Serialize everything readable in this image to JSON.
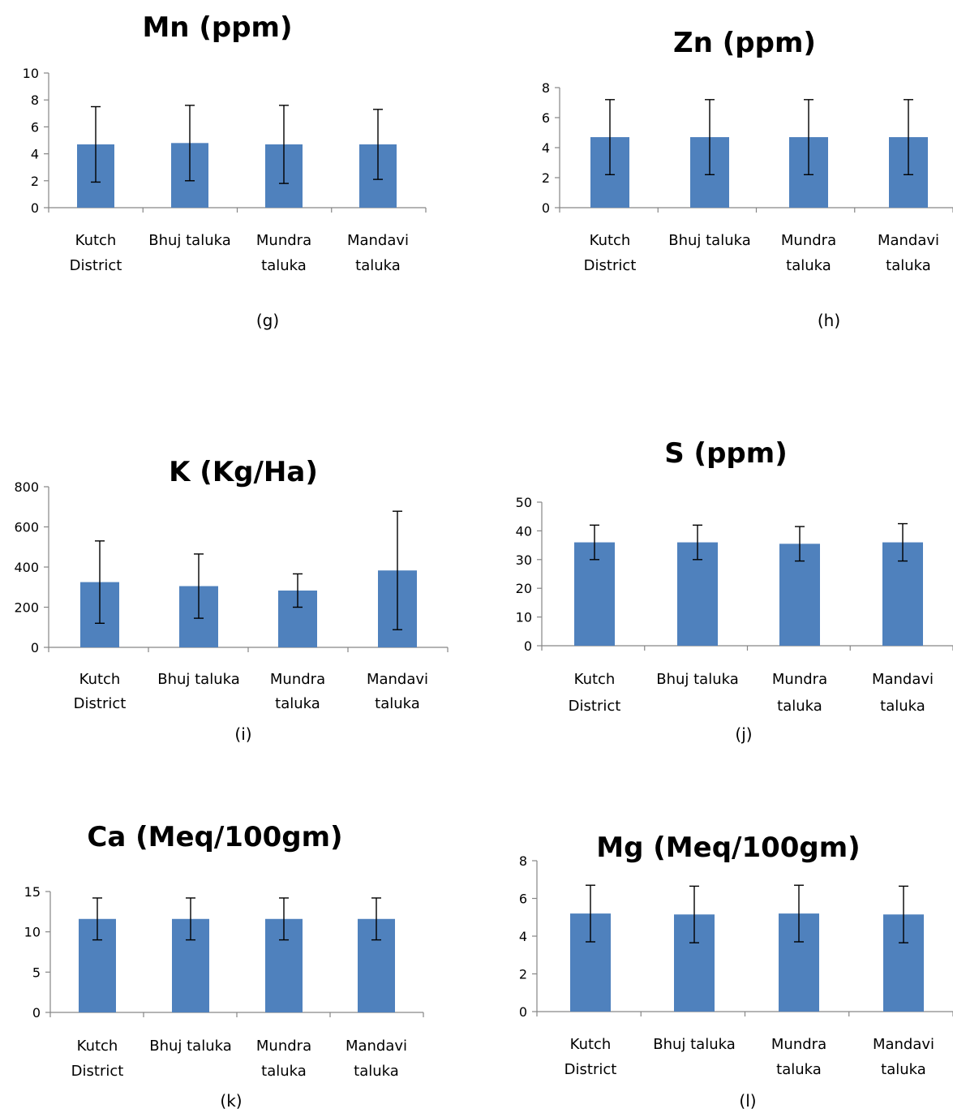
{
  "colors": {
    "bar": "#4f81bd",
    "axis": "#868686",
    "error_bar": "#000000"
  },
  "chart_data": [
    {
      "type": "bar",
      "title": "Mn (ppm)",
      "panel_label": "(g)",
      "categories": [
        "Kutch District",
        "Bhuj taluka",
        "Mundra taluka",
        "Mandavi taluka"
      ],
      "values": [
        4.7,
        4.8,
        4.7,
        4.7
      ],
      "error": [
        2.8,
        2.8,
        2.9,
        2.6
      ],
      "ylim": [
        0,
        10
      ],
      "yticks": [
        0,
        2,
        4,
        6,
        8,
        10
      ],
      "grid": false,
      "legend": "none"
    },
    {
      "type": "bar",
      "title": "Zn (ppm)",
      "panel_label": "(h)",
      "categories": [
        "Kutch District",
        "Bhuj taluka",
        "Mundra taluka",
        "Mandavi taluka"
      ],
      "values": [
        4.7,
        4.7,
        4.7,
        4.7
      ],
      "error": [
        2.5,
        2.5,
        2.5,
        2.5
      ],
      "ylim": [
        0,
        8
      ],
      "yticks": [
        0,
        2,
        4,
        6,
        8
      ],
      "grid": false,
      "legend": "none"
    },
    {
      "type": "bar",
      "title": "K (Kg/Ha)",
      "panel_label": "(i)",
      "categories": [
        "Kutch District",
        "Bhuj taluka",
        "Mundra taluka",
        "Mandavi taluka"
      ],
      "values": [
        325,
        305,
        283,
        383
      ],
      "error": [
        205,
        160,
        83,
        295
      ],
      "ylim": [
        0,
        800
      ],
      "yticks": [
        0,
        200,
        400,
        600,
        800
      ],
      "grid": false,
      "legend": "none"
    },
    {
      "type": "bar",
      "title": "S (ppm)",
      "panel_label": "(j)",
      "categories": [
        "Kutch District",
        "Bhuj taluka",
        "Mundra taluka",
        "Mandavi taluka"
      ],
      "values": [
        36,
        36,
        35.5,
        36
      ],
      "error": [
        6,
        6,
        6,
        6.5
      ],
      "ylim": [
        0,
        50
      ],
      "yticks": [
        0,
        10,
        20,
        30,
        40,
        50
      ],
      "grid": false,
      "legend": "none"
    },
    {
      "type": "bar",
      "title": "Ca (Meq/100gm)",
      "panel_label": "(k)",
      "categories": [
        "Kutch District",
        "Bhuj taluka",
        "Mundra taluka",
        "Mandavi taluka"
      ],
      "values": [
        11.6,
        11.6,
        11.6,
        11.6
      ],
      "error": [
        2.6,
        2.6,
        2.6,
        2.6
      ],
      "ylim": [
        0,
        15
      ],
      "yticks": [
        0,
        5,
        10,
        15
      ],
      "grid": false,
      "legend": "none"
    },
    {
      "type": "bar",
      "title": "Mg (Meq/100gm)",
      "panel_label": "(l)",
      "categories": [
        "Kutch District",
        "Bhuj taluka",
        "Mundra taluka",
        "Mandavi taluka"
      ],
      "values": [
        5.2,
        5.15,
        5.2,
        5.15
      ],
      "error": [
        1.5,
        1.5,
        1.5,
        1.5
      ],
      "ylim": [
        0,
        8
      ],
      "yticks": [
        0,
        2,
        4,
        6,
        8
      ],
      "grid": false,
      "legend": "none"
    }
  ]
}
